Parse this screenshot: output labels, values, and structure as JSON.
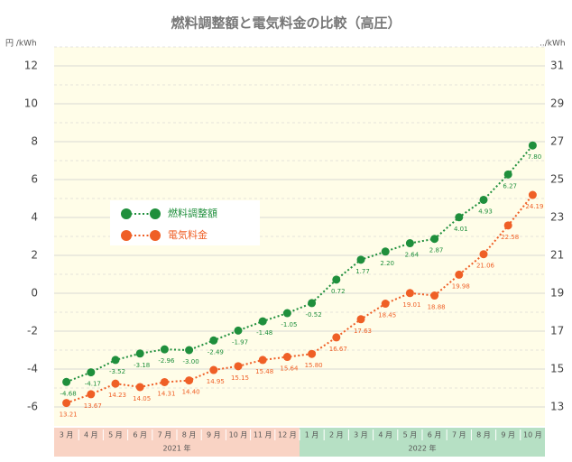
{
  "chart_data": {
    "type": "line",
    "title": "燃料調整額と電気料金の比較（高圧）",
    "y_label": "円 /kWh",
    "y2_label": "../kWh",
    "categories": [
      "3 月",
      "4 月",
      "5 月",
      "6 月",
      "7 月",
      "8 月",
      "9 月",
      "10 月",
      "11 月",
      "12 月",
      "1 月",
      "2 月",
      "3 月",
      "4 月",
      "5 月",
      "6 月",
      "7 月",
      "8 月",
      "9 月",
      "10 月"
    ],
    "year_groups": [
      {
        "label": "2021 年",
        "start": 0,
        "end": 9,
        "color": "#f9d3c4"
      },
      {
        "label": "2022 年",
        "start": 10,
        "end": 19,
        "color": "#b6e0c4"
      }
    ],
    "series": [
      {
        "name": "燃料調整額",
        "color": "#1f8f3c",
        "axis": "y",
        "values": [
          -4.68,
          -4.17,
          -3.52,
          -3.18,
          -2.96,
          -3.0,
          -2.49,
          -1.97,
          -1.48,
          -1.05,
          -0.52,
          0.72,
          1.77,
          2.2,
          2.64,
          2.87,
          4.01,
          4.93,
          6.27,
          7.8
        ],
        "value_labels": [
          "-4.68",
          "-4.17",
          "-3.52",
          "-3.18",
          "-2.96",
          "-3.00",
          "-2.49",
          "-1.97",
          "-1.48",
          "-1.05",
          "-0.52",
          "0.72",
          "1.77",
          "2.20",
          "2.64",
          "2.87",
          "4.01",
          "4.93",
          "6.27",
          "7.80"
        ]
      },
      {
        "name": "電気料金",
        "color": "#ef5f26",
        "axis": "y2",
        "values": [
          13.21,
          13.67,
          14.23,
          14.05,
          14.31,
          14.4,
          14.95,
          15.15,
          15.48,
          15.64,
          15.8,
          16.67,
          17.63,
          18.45,
          19.01,
          18.88,
          19.98,
          21.06,
          22.58,
          24.19
        ],
        "value_labels": [
          "13.21",
          "13.67",
          "14.23",
          "14.05",
          "14.31",
          "14.40",
          "14.95",
          "15.15",
          "15.48",
          "15.64",
          "15.80",
          "16.67",
          "17.63",
          "18.45",
          "19.01",
          "18.88",
          "19.98",
          "21.06",
          "22.58",
          "24.19"
        ]
      }
    ],
    "ylim": [
      -7,
      13
    ],
    "yticks": [
      -6,
      -4,
      -2,
      0,
      2,
      4,
      6,
      8,
      10,
      12
    ],
    "y2lim": [
      12,
      32
    ],
    "y2ticks": [
      13,
      15,
      17,
      19,
      21,
      23,
      25,
      27,
      29,
      31
    ],
    "grid": true,
    "legend": "left"
  }
}
